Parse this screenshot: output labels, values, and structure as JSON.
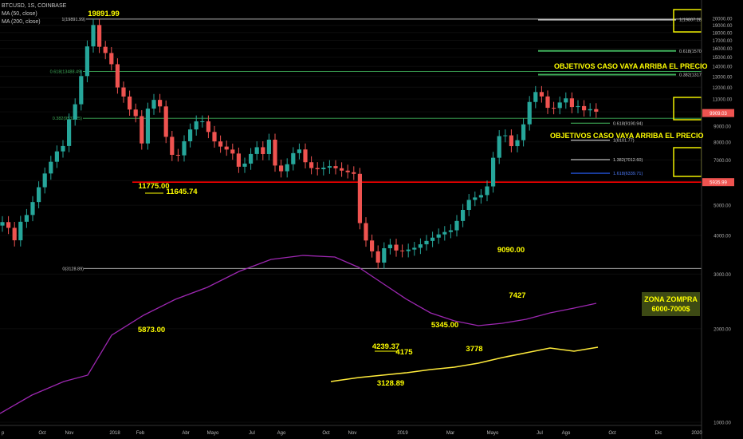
{
  "header": {
    "symbol": "BTCUSD, 1S, COINBASE",
    "ma50": "MA (50, close)",
    "ma200": "MA (200, close)"
  },
  "notes": {
    "targets_up_1": "OBJETIVOS CASO VAYA ARRIBA EL PRECIO",
    "targets_up_2": "OBJETIVOS CASO VAYA ARRIBA EL PRECIO",
    "zone_line1": "ZONA ZOMPRA",
    "zone_line2": "6000-7000$"
  },
  "colors": {
    "up": "#26a69a",
    "down": "#ef5350",
    "ma50": "#9c27b0",
    "ma200": "#ffeb3b",
    "annotation": "#ffff00",
    "support": "#ff0000",
    "fib": "#3fae5a"
  },
  "chart_data": {
    "type": "candlestick",
    "y_scale": "log",
    "ylim": [
      1000,
      21000
    ],
    "y_ticks": [
      "1000.00",
      "2000.00",
      "3000.00",
      "4000.00",
      "5000.00",
      "6000.00",
      "7000.00",
      "8000.00",
      "9000.00",
      "10000.00",
      "11000.00",
      "12000.00",
      "13000.00",
      "14000.00",
      "15000.00",
      "16000.00",
      "17000.00",
      "18000.00",
      "19000.00",
      "20000.00"
    ],
    "x_labels": [
      "Oct",
      "Nov",
      "2018",
      "Feb",
      "Abr",
      "Mayo",
      "Jul",
      "Ago",
      "Oct",
      "Nov",
      "2019",
      "Mar",
      "Mayo",
      "Jul",
      "Ago",
      "Oct",
      "Dic",
      "2020"
    ],
    "price_tags": [
      {
        "label": "9909.03",
        "value": 9909,
        "color": "#ef5350"
      },
      {
        "label": "5935.99",
        "value": 5936,
        "color": "#ef5350"
      }
    ],
    "fib_levels": [
      {
        "label": "1(19891.99)",
        "value": 19892
      },
      {
        "label": "0.618(13488.49)",
        "value": 13488
      },
      {
        "label": "0.382(9532.25)",
        "value": 9532
      },
      {
        "label": "0(3128.89)",
        "value": 3129
      }
    ],
    "target_levels": [
      {
        "label": "1(19807.28)",
        "value": 19807
      },
      {
        "label": "0.618(15708.65)",
        "value": 15709
      },
      {
        "label": "0.382(13176.57)",
        "value": 13177
      },
      {
        "label": "0.618(9190.94)",
        "value": 9191
      },
      {
        "label": "1(8101.77)",
        "value": 8102
      },
      {
        "label": "1.382(7012.60)",
        "value": 7013
      },
      {
        "label": "1.618(6339.71)",
        "value": 6340
      }
    ],
    "support_level": 5936,
    "price_annotations": [
      "19891.99",
      "11775.00",
      "11645.74",
      "5873.00",
      "4239.37",
      "4175",
      "3128.89",
      "5345.00",
      "3778",
      "9090.00",
      "7427"
    ]
  }
}
